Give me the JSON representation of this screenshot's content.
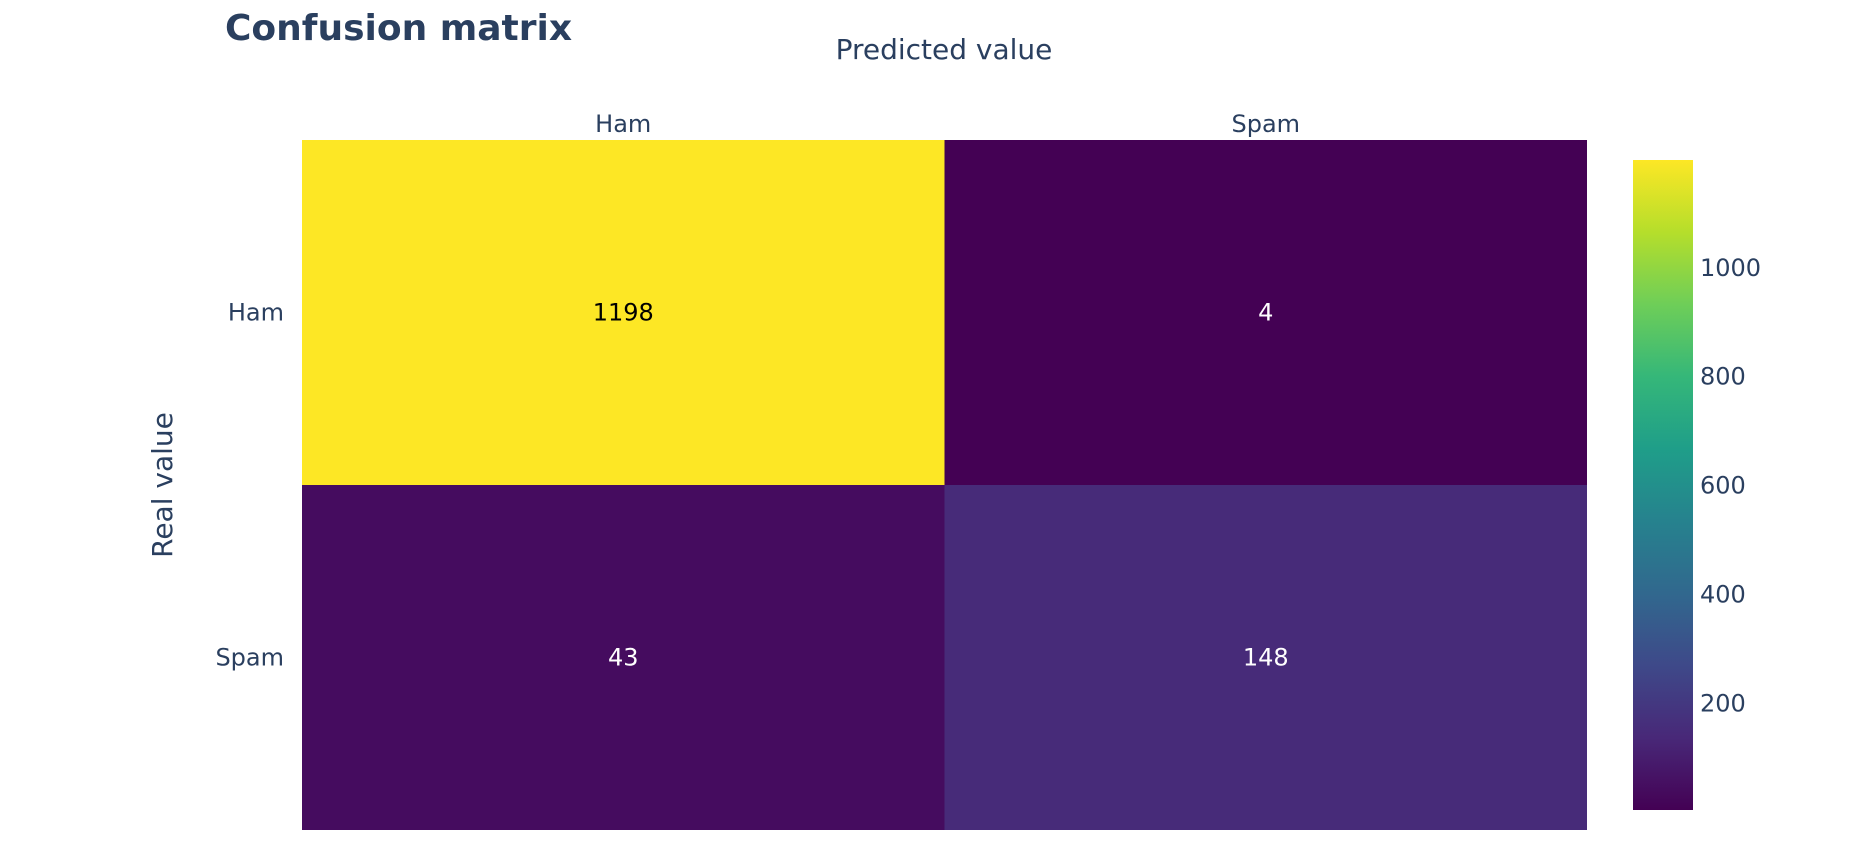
{
  "chart_data": {
    "type": "heatmap",
    "title": "Confusion matrix",
    "xlabel": "Predicted value",
    "ylabel": "Real value",
    "x_categories": [
      "Ham",
      "Spam"
    ],
    "y_categories": [
      "Ham",
      "Spam"
    ],
    "z": [
      [
        1198,
        4
      ],
      [
        43,
        148
      ]
    ],
    "colorscale": "Viridis",
    "zlim": [
      4,
      1198
    ],
    "colorbar_ticks": [
      200,
      400,
      600,
      800,
      1000
    ],
    "x_axis_side": "top"
  },
  "colors": {
    "text": "#2a3f5f",
    "cell_dark_label": "#000000",
    "cell_light_label": "#ffffff"
  }
}
